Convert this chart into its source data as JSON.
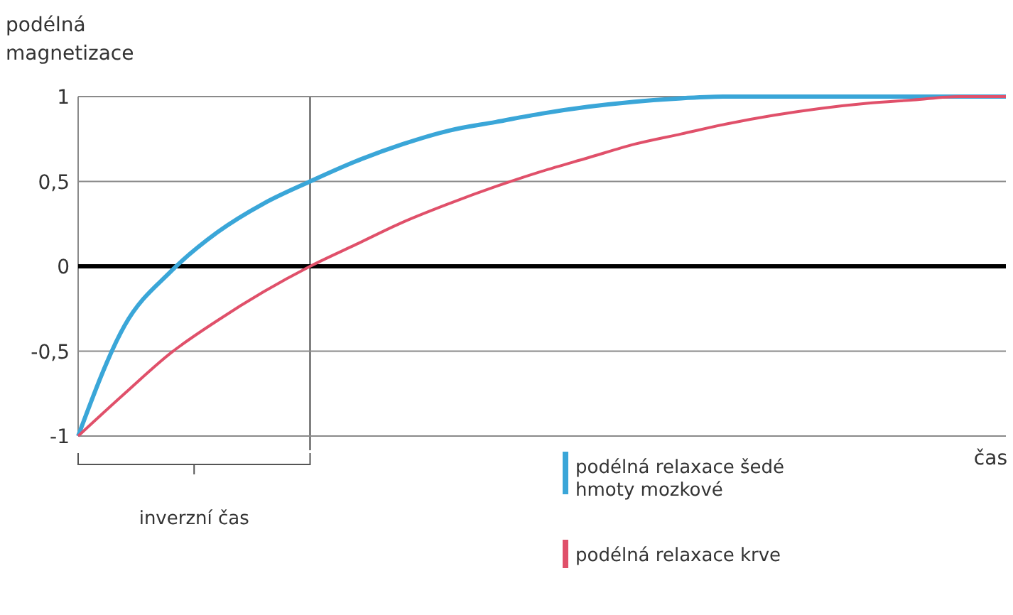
{
  "chart_data": {
    "type": "line",
    "ylabel": "podélná magnetizace",
    "xlabel": "čas",
    "categories": [
      null,
      null,
      null,
      null,
      null,
      null,
      null,
      null,
      null,
      null,
      null,
      null,
      null,
      null,
      null,
      null,
      null,
      null,
      null,
      null,
      null
    ],
    "series": [
      {
        "name": "podélná relaxace šedé hmoty mozkové",
        "color": "#3aa6d8",
        "values": [
          -1,
          -0.35,
          -0.03,
          0.2,
          0.37,
          0.5,
          0.62,
          0.72,
          0.8,
          0.85,
          0.9,
          0.94,
          0.97,
          0.99,
          1,
          1,
          1,
          1,
          1,
          1,
          1
        ]
      },
      {
        "name": "podélná relaxace krve",
        "color": "#e0506a",
        "values": [
          -1,
          -0.75,
          -0.51,
          -0.32,
          -0.15,
          0,
          0.13,
          0.26,
          0.37,
          0.47,
          0.56,
          0.64,
          0.72,
          0.78,
          0.84,
          0.89,
          0.93,
          0.96,
          0.98,
          1,
          1
        ]
      }
    ],
    "ylim": [
      -1,
      1
    ],
    "yticks": [
      {
        "value": -1,
        "label": "-1"
      },
      {
        "value": -0.5,
        "label": "-0,5"
      },
      0,
      {
        "value": 0.5,
        "label": "0,5"
      },
      1
    ],
    "grid": "y",
    "legend": "bottom",
    "marker": "none",
    "line_style": "solid",
    "annotations": [
      "inverzní čas"
    ],
    "ref_lines": [
      {
        "axis": "y",
        "value": 0,
        "color": "#000000"
      }
    ]
  }
}
